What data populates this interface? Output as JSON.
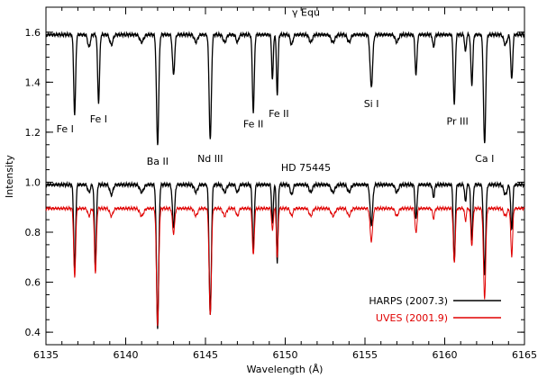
{
  "chart_data": {
    "type": "line",
    "title": "",
    "xlabel": "Wavelength (Å)",
    "ylabel": "Intensity",
    "xlim": [
      6135,
      6165
    ],
    "ylim": [
      0.35,
      1.7
    ],
    "x_ticks": [
      6135,
      6140,
      6145,
      6150,
      6155,
      6160,
      6165
    ],
    "y_ticks": [
      0.4,
      0.6,
      0.8,
      1.0,
      1.2,
      1.4,
      1.6
    ],
    "grid": false,
    "legend_position": "bottom-right",
    "series": [
      {
        "name": "γ Equ",
        "color": "#000000",
        "continuum": 1.59,
        "lines": [
          {
            "w": 6136.8,
            "d": 0.32,
            "s": 0.06
          },
          {
            "w": 6137.7,
            "d": 0.05,
            "s": 0.08
          },
          {
            "w": 6138.3,
            "d": 0.27,
            "s": 0.06
          },
          {
            "w": 6139.1,
            "d": 0.04,
            "s": 0.1
          },
          {
            "w": 6141.0,
            "d": 0.03,
            "s": 0.12
          },
          {
            "w": 6142.0,
            "d": 0.44,
            "s": 0.07
          },
          {
            "w": 6143.0,
            "d": 0.16,
            "s": 0.07
          },
          {
            "w": 6144.4,
            "d": 0.03,
            "s": 0.1
          },
          {
            "w": 6145.3,
            "d": 0.42,
            "s": 0.07
          },
          {
            "w": 6146.2,
            "d": 0.03,
            "s": 0.1
          },
          {
            "w": 6147.0,
            "d": 0.03,
            "s": 0.08
          },
          {
            "w": 6148.0,
            "d": 0.31,
            "s": 0.06
          },
          {
            "w": 6149.2,
            "d": 0.18,
            "s": 0.05
          },
          {
            "w": 6149.5,
            "d": 0.24,
            "s": 0.05
          },
          {
            "w": 6150.4,
            "d": 0.04,
            "s": 0.08
          },
          {
            "w": 6151.6,
            "d": 0.03,
            "s": 0.1
          },
          {
            "w": 6153.0,
            "d": 0.03,
            "s": 0.12
          },
          {
            "w": 6154.0,
            "d": 0.03,
            "s": 0.1
          },
          {
            "w": 6155.4,
            "d": 0.21,
            "s": 0.08
          },
          {
            "w": 6157.0,
            "d": 0.03,
            "s": 0.1
          },
          {
            "w": 6158.2,
            "d": 0.16,
            "s": 0.06
          },
          {
            "w": 6159.3,
            "d": 0.05,
            "s": 0.06
          },
          {
            "w": 6160.6,
            "d": 0.28,
            "s": 0.06
          },
          {
            "w": 6161.3,
            "d": 0.07,
            "s": 0.05
          },
          {
            "w": 6161.7,
            "d": 0.2,
            "s": 0.06
          },
          {
            "w": 6162.5,
            "d": 0.44,
            "s": 0.07
          },
          {
            "w": 6163.8,
            "d": 0.04,
            "s": 0.1
          },
          {
            "w": 6164.2,
            "d": 0.18,
            "s": 0.06
          }
        ]
      },
      {
        "name": "HARPS (2007.3)",
        "color": "#000000",
        "continuum": 0.99,
        "lines": [
          {
            "w": 6136.8,
            "d": 0.34,
            "s": 0.06
          },
          {
            "w": 6137.7,
            "d": 0.03,
            "s": 0.08
          },
          {
            "w": 6138.1,
            "d": 0.32,
            "s": 0.06
          },
          {
            "w": 6139.1,
            "d": 0.04,
            "s": 0.1
          },
          {
            "w": 6141.0,
            "d": 0.03,
            "s": 0.12
          },
          {
            "w": 6142.0,
            "d": 0.57,
            "s": 0.07
          },
          {
            "w": 6143.0,
            "d": 0.17,
            "s": 0.07
          },
          {
            "w": 6144.4,
            "d": 0.03,
            "s": 0.1
          },
          {
            "w": 6145.3,
            "d": 0.52,
            "s": 0.07
          },
          {
            "w": 6146.2,
            "d": 0.03,
            "s": 0.1
          },
          {
            "w": 6147.0,
            "d": 0.03,
            "s": 0.08
          },
          {
            "w": 6148.0,
            "d": 0.26,
            "s": 0.06
          },
          {
            "w": 6149.2,
            "d": 0.16,
            "s": 0.05
          },
          {
            "w": 6149.5,
            "d": 0.31,
            "s": 0.05
          },
          {
            "w": 6150.4,
            "d": 0.04,
            "s": 0.08
          },
          {
            "w": 6151.6,
            "d": 0.03,
            "s": 0.1
          },
          {
            "w": 6153.0,
            "d": 0.03,
            "s": 0.12
          },
          {
            "w": 6154.0,
            "d": 0.03,
            "s": 0.1
          },
          {
            "w": 6155.4,
            "d": 0.16,
            "s": 0.08
          },
          {
            "w": 6157.0,
            "d": 0.03,
            "s": 0.1
          },
          {
            "w": 6158.2,
            "d": 0.14,
            "s": 0.06
          },
          {
            "w": 6159.3,
            "d": 0.05,
            "s": 0.06
          },
          {
            "w": 6160.6,
            "d": 0.31,
            "s": 0.06
          },
          {
            "w": 6161.3,
            "d": 0.07,
            "s": 0.05
          },
          {
            "w": 6161.7,
            "d": 0.22,
            "s": 0.06
          },
          {
            "w": 6162.5,
            "d": 0.36,
            "s": 0.07
          },
          {
            "w": 6163.8,
            "d": 0.04,
            "s": 0.1
          },
          {
            "w": 6164.2,
            "d": 0.18,
            "s": 0.06
          }
        ]
      },
      {
        "name": "UVES (2001.9)",
        "color": "#e00000",
        "continuum": 0.895,
        "lines": [
          {
            "w": 6136.8,
            "d": 0.28,
            "s": 0.06
          },
          {
            "w": 6137.7,
            "d": 0.03,
            "s": 0.08
          },
          {
            "w": 6138.1,
            "d": 0.26,
            "s": 0.06
          },
          {
            "w": 6139.1,
            "d": 0.03,
            "s": 0.1
          },
          {
            "w": 6141.0,
            "d": 0.03,
            "s": 0.12
          },
          {
            "w": 6142.0,
            "d": 0.47,
            "s": 0.07
          },
          {
            "w": 6143.0,
            "d": 0.1,
            "s": 0.07
          },
          {
            "w": 6144.4,
            "d": 0.03,
            "s": 0.1
          },
          {
            "w": 6145.3,
            "d": 0.43,
            "s": 0.07
          },
          {
            "w": 6146.2,
            "d": 0.03,
            "s": 0.1
          },
          {
            "w": 6147.0,
            "d": 0.03,
            "s": 0.08
          },
          {
            "w": 6148.0,
            "d": 0.19,
            "s": 0.06
          },
          {
            "w": 6149.2,
            "d": 0.09,
            "s": 0.05
          },
          {
            "w": 6149.5,
            "d": 0.2,
            "s": 0.05
          },
          {
            "w": 6150.4,
            "d": 0.03,
            "s": 0.08
          },
          {
            "w": 6151.6,
            "d": 0.03,
            "s": 0.1
          },
          {
            "w": 6153.0,
            "d": 0.03,
            "s": 0.12
          },
          {
            "w": 6154.0,
            "d": 0.03,
            "s": 0.1
          },
          {
            "w": 6155.4,
            "d": 0.13,
            "s": 0.08
          },
          {
            "w": 6157.0,
            "d": 0.03,
            "s": 0.1
          },
          {
            "w": 6158.2,
            "d": 0.1,
            "s": 0.06
          },
          {
            "w": 6159.3,
            "d": 0.04,
            "s": 0.06
          },
          {
            "w": 6160.6,
            "d": 0.22,
            "s": 0.06
          },
          {
            "w": 6161.3,
            "d": 0.05,
            "s": 0.05
          },
          {
            "w": 6161.7,
            "d": 0.15,
            "s": 0.06
          },
          {
            "w": 6162.5,
            "d": 0.36,
            "s": 0.07
          },
          {
            "w": 6163.8,
            "d": 0.03,
            "s": 0.1
          },
          {
            "w": 6164.2,
            "d": 0.19,
            "s": 0.06
          }
        ]
      }
    ],
    "series_labels": [
      {
        "text": "γ Equ",
        "x": 6151.3,
        "y": 1.665
      },
      {
        "text": "HD 75445",
        "x": 6151.3,
        "y": 1.045
      }
    ],
    "annotations": [
      {
        "text": "Fe I",
        "x": 6136.2,
        "y": 1.2
      },
      {
        "text": "Fe I",
        "x": 6138.3,
        "y": 1.24
      },
      {
        "text": "Ba II",
        "x": 6142.0,
        "y": 1.07
      },
      {
        "text": "Nd III",
        "x": 6145.3,
        "y": 1.08
      },
      {
        "text": "Fe II",
        "x": 6148.0,
        "y": 1.22
      },
      {
        "text": "Fe II",
        "x": 6149.6,
        "y": 1.26
      },
      {
        "text": "Si I",
        "x": 6155.4,
        "y": 1.3
      },
      {
        "text": "Pr III",
        "x": 6160.8,
        "y": 1.23
      },
      {
        "text": "Ca I",
        "x": 6162.5,
        "y": 1.08
      }
    ]
  }
}
